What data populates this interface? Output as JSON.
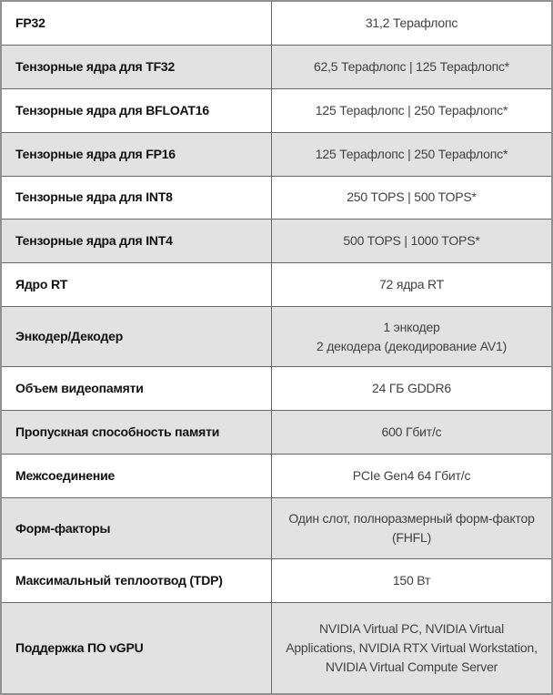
{
  "table": {
    "rows": [
      {
        "label": "FP32",
        "value": "31,2 Терафлопс"
      },
      {
        "label": "Тензорные ядра для TF32",
        "value": "62,5 Терафлопс | 125 Терафлопс*"
      },
      {
        "label": "Тензорные ядра для BFLOAT16",
        "value": "125 Терафлопс | 250 Терафлопс*"
      },
      {
        "label": "Тензорные ядра для FP16",
        "value": "125 Терафлопс | 250 Терафлопс*"
      },
      {
        "label": "Тензорные ядра для INT8",
        "value": "250 TOPS | 500 TOPS*"
      },
      {
        "label": "Тензорные ядра для INT4",
        "value": "500 TOPS | 1000 TOPS*"
      },
      {
        "label": "Ядро RT",
        "value": "72 ядра RT"
      },
      {
        "label": "Энкодер/Декодер",
        "value": "1 энкодер\n2 декодера (декодирование AV1)"
      },
      {
        "label": "Объем видеопамяти",
        "value": "24 ГБ GDDR6"
      },
      {
        "label": "Пропускная способность памяти",
        "value": "600 Гбит/с"
      },
      {
        "label": "Межсоединение",
        "value": "PCIe Gen4 64 Гбит/с"
      },
      {
        "label": "Форм-факторы",
        "value": "Один слот, полноразмерный форм-фактор (FHFL)"
      },
      {
        "label": "Максимальный теплоотвод (TDP)",
        "value": "150 Вт"
      },
      {
        "label": "Поддержка ПО vGPU",
        "value": "NVIDIA Virtual PC, NVIDIA Virtual Applications, NVIDIA RTX Virtual Workstation, NVIDIA Virtual Compute Server"
      }
    ]
  },
  "colors": {
    "row_alt_bg": "#e2e2e2",
    "row_bg": "#ffffff",
    "border_outer": "#909090",
    "border_inner": "#676767",
    "label_text": "#101010",
    "value_text": "#414141"
  }
}
